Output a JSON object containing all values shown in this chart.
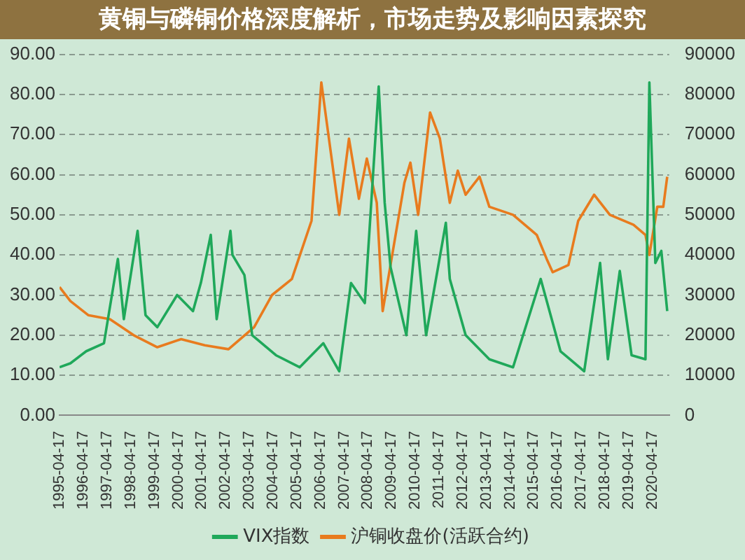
{
  "chart_data": {
    "type": "line",
    "title": "黄铜与磷铜价格深度解析，市场走势及影响因素探究",
    "series": [
      {
        "name": "VIX指数",
        "color": "#1fa85a",
        "axis": "y",
        "x": [
          "1995-04-17",
          "1995-10",
          "1996-06",
          "1997-03",
          "1997-10",
          "1998-01",
          "1998-08",
          "1998-12",
          "1999-06",
          "2000-04",
          "2000-12",
          "2001-04",
          "2001-09",
          "2001-12",
          "2002-07",
          "2002-08",
          "2003-02",
          "2003-06",
          "2004-06",
          "2005-06",
          "2006-06",
          "2007-02",
          "2007-08",
          "2008-03",
          "2008-10",
          "2009-01",
          "2009-04",
          "2009-12",
          "2010-05",
          "2010-10",
          "2011-08",
          "2011-10",
          "2012-06",
          "2013-06",
          "2014-06",
          "2015-08",
          "2016-01",
          "2016-06",
          "2017-06",
          "2018-02",
          "2018-06",
          "2018-12",
          "2019-06",
          "2020-01",
          "2020-03",
          "2020-06",
          "2020-09",
          "2020-12"
        ],
        "values": [
          12,
          13,
          16,
          18,
          39,
          24,
          46,
          25,
          22,
          30,
          26,
          33,
          45,
          24,
          46,
          40,
          35,
          20,
          15,
          12,
          18,
          11,
          33,
          28,
          82,
          53,
          37,
          20,
          46,
          20,
          48,
          34,
          20,
          14,
          12,
          34,
          25,
          16,
          11,
          38,
          14,
          36,
          15,
          14,
          83,
          38,
          41,
          26
        ]
      },
      {
        "name": "沪铜收盘价(活跃合约)",
        "color": "#e87b1e",
        "axis": "y2",
        "x": [
          "1995-04-17",
          "1995-10",
          "1996-07",
          "1997-06",
          "1998-06",
          "1999-06",
          "2000-06",
          "2001-06",
          "2002-06",
          "2003-07",
          "2004-04",
          "2005-02",
          "2005-12",
          "2006-05",
          "2007-02",
          "2007-07",
          "2007-12",
          "2008-04",
          "2008-09",
          "2008-12",
          "2009-04",
          "2009-11",
          "2010-02",
          "2010-06",
          "2010-12",
          "2011-05",
          "2011-10",
          "2012-02",
          "2012-06",
          "2013-01",
          "2013-06",
          "2014-06",
          "2015-06",
          "2015-11",
          "2016-02",
          "2016-10",
          "2017-03",
          "2017-11",
          "2018-07",
          "2019-07",
          "2020-01",
          "2020-03",
          "2020-07",
          "2020-10",
          "2020-12"
        ],
        "values": [
          32000,
          28500,
          25000,
          24000,
          20000,
          17000,
          19000,
          17500,
          16500,
          22000,
          30000,
          34000,
          48500,
          83000,
          50000,
          69000,
          54000,
          64000,
          53000,
          26000,
          37500,
          58000,
          63000,
          50000,
          75500,
          69000,
          53000,
          61000,
          55000,
          59500,
          52000,
          50000,
          45000,
          39000,
          35700,
          37500,
          48500,
          55000,
          50000,
          47500,
          45000,
          40000,
          52000,
          52000,
          59500
        ]
      }
    ],
    "xlim": [
      "1995-04-17",
      "2020-12-31"
    ],
    "xticks": [
      "1995-04-17",
      "1996-04-17",
      "1997-04-17",
      "1998-04-17",
      "1999-04-17",
      "2000-04-17",
      "2001-04-17",
      "2002-04-17",
      "2003-04-17",
      "2004-04-17",
      "2005-04-17",
      "2006-04-17",
      "2007-04-17",
      "2008-04-17",
      "2009-04-17",
      "2010-04-17",
      "2011-04-17",
      "2012-04-17",
      "2013-04-17",
      "2014-04-17",
      "2015-04-17",
      "2016-04-17",
      "2017-04-17",
      "2018-04-17",
      "2019-04-17",
      "2020-04-17"
    ],
    "ylim": [
      0,
      90
    ],
    "yticks": [
      {
        "value": 0,
        "label": "0.00"
      },
      {
        "value": 10,
        "label": "10.00"
      },
      {
        "value": 20,
        "label": "20.00"
      },
      {
        "value": 30,
        "label": "30.00"
      },
      {
        "value": 40,
        "label": "40.00"
      },
      {
        "value": 50,
        "label": "50.00"
      },
      {
        "value": 60,
        "label": "60.00"
      },
      {
        "value": 70,
        "label": "70.00"
      },
      {
        "value": 80,
        "label": "80.00"
      },
      {
        "value": 90,
        "label": "90.00"
      }
    ],
    "y2lim": [
      0,
      90000
    ],
    "y2ticks": [
      0,
      10000,
      20000,
      30000,
      40000,
      50000,
      60000,
      70000,
      80000,
      90000
    ],
    "grid": "y",
    "legend": "bottom",
    "marker": "none",
    "line_style": "solid"
  }
}
